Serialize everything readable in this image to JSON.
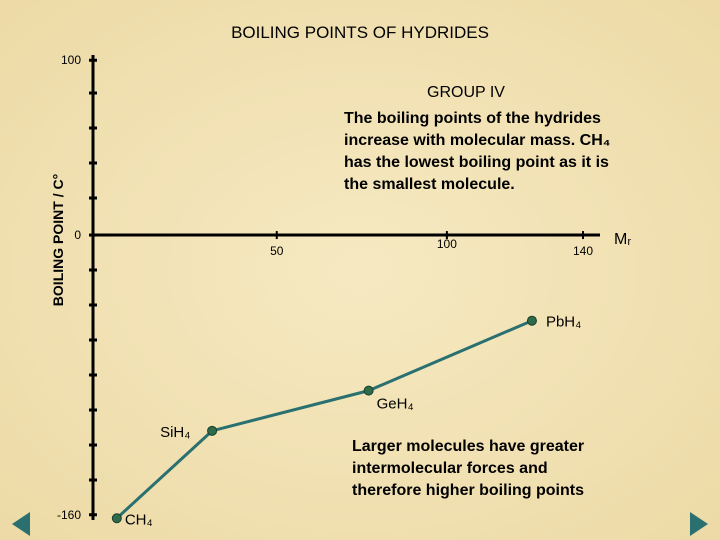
{
  "chart_data": {
    "type": "line",
    "title": "BOILING POINTS OF HYDRIDES",
    "subtitle": "GROUP IV",
    "ylabel": "BOILING POINT / C°",
    "xlabel": "Mᵣ",
    "x": [
      3,
      31,
      77,
      125
    ],
    "series": [
      {
        "name": null,
        "color": "#2a7070",
        "values": [
          -162,
          -112,
          -89,
          -49
        ]
      }
    ],
    "point_labels": [
      "CH₄",
      "SiH₄",
      "GeH₄",
      "PbH₄"
    ],
    "xlim": [
      -4,
      145
    ],
    "ylim": [
      -163,
      103
    ],
    "xticks": [
      50,
      100,
      140
    ],
    "yticks": [
      100,
      0,
      -160
    ],
    "annotations": [
      [
        "The boiling points of the hydrides",
        "increase with molecular mass. CH₄",
        "has the lowest boiling point as it is",
        "the smallest molecule."
      ],
      [
        "Larger molecules have greater",
        "intermolecular forces and",
        "therefore higher boiling points"
      ]
    ]
  }
}
